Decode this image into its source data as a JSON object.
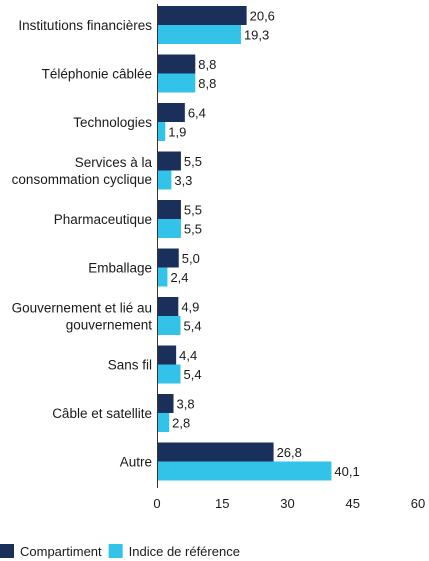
{
  "chart_data": {
    "type": "bar",
    "orientation": "horizontal",
    "categories": [
      [
        "Institutions financières"
      ],
      [
        "Téléphonie câblée"
      ],
      [
        "Technologies"
      ],
      [
        "Services à la",
        "consommation cyclique"
      ],
      [
        "Pharmaceutique"
      ],
      [
        "Emballage"
      ],
      [
        "Gouvernement et lié au",
        "gouvernement"
      ],
      [
        "Sans fil"
      ],
      [
        "Câble et satellite"
      ],
      [
        "Autre"
      ]
    ],
    "series": [
      {
        "name": "Compartiment",
        "color": "#1b2f5b",
        "values": [
          20.6,
          8.8,
          6.4,
          5.5,
          5.5,
          5.0,
          4.9,
          4.4,
          3.8,
          26.8
        ],
        "labels": [
          "20,6",
          "8,8",
          "6,4",
          "5,5",
          "5,5",
          "5,0",
          "4,9",
          "4,4",
          "3,8",
          "26,8"
        ]
      },
      {
        "name": "Indice de référence",
        "color": "#33c2e8",
        "values": [
          19.3,
          8.8,
          1.9,
          3.3,
          5.5,
          2.4,
          5.4,
          5.4,
          2.8,
          40.1
        ],
        "labels": [
          "19,3",
          "8,8",
          "1,9",
          "3,3",
          "5,5",
          "2,4",
          "5,4",
          "5,4",
          "2,8",
          "40,1"
        ]
      }
    ],
    "xlim": [
      0,
      60
    ],
    "xticks": [
      0,
      15,
      30,
      45,
      60
    ],
    "grid": false,
    "legend": "bottom-left"
  }
}
